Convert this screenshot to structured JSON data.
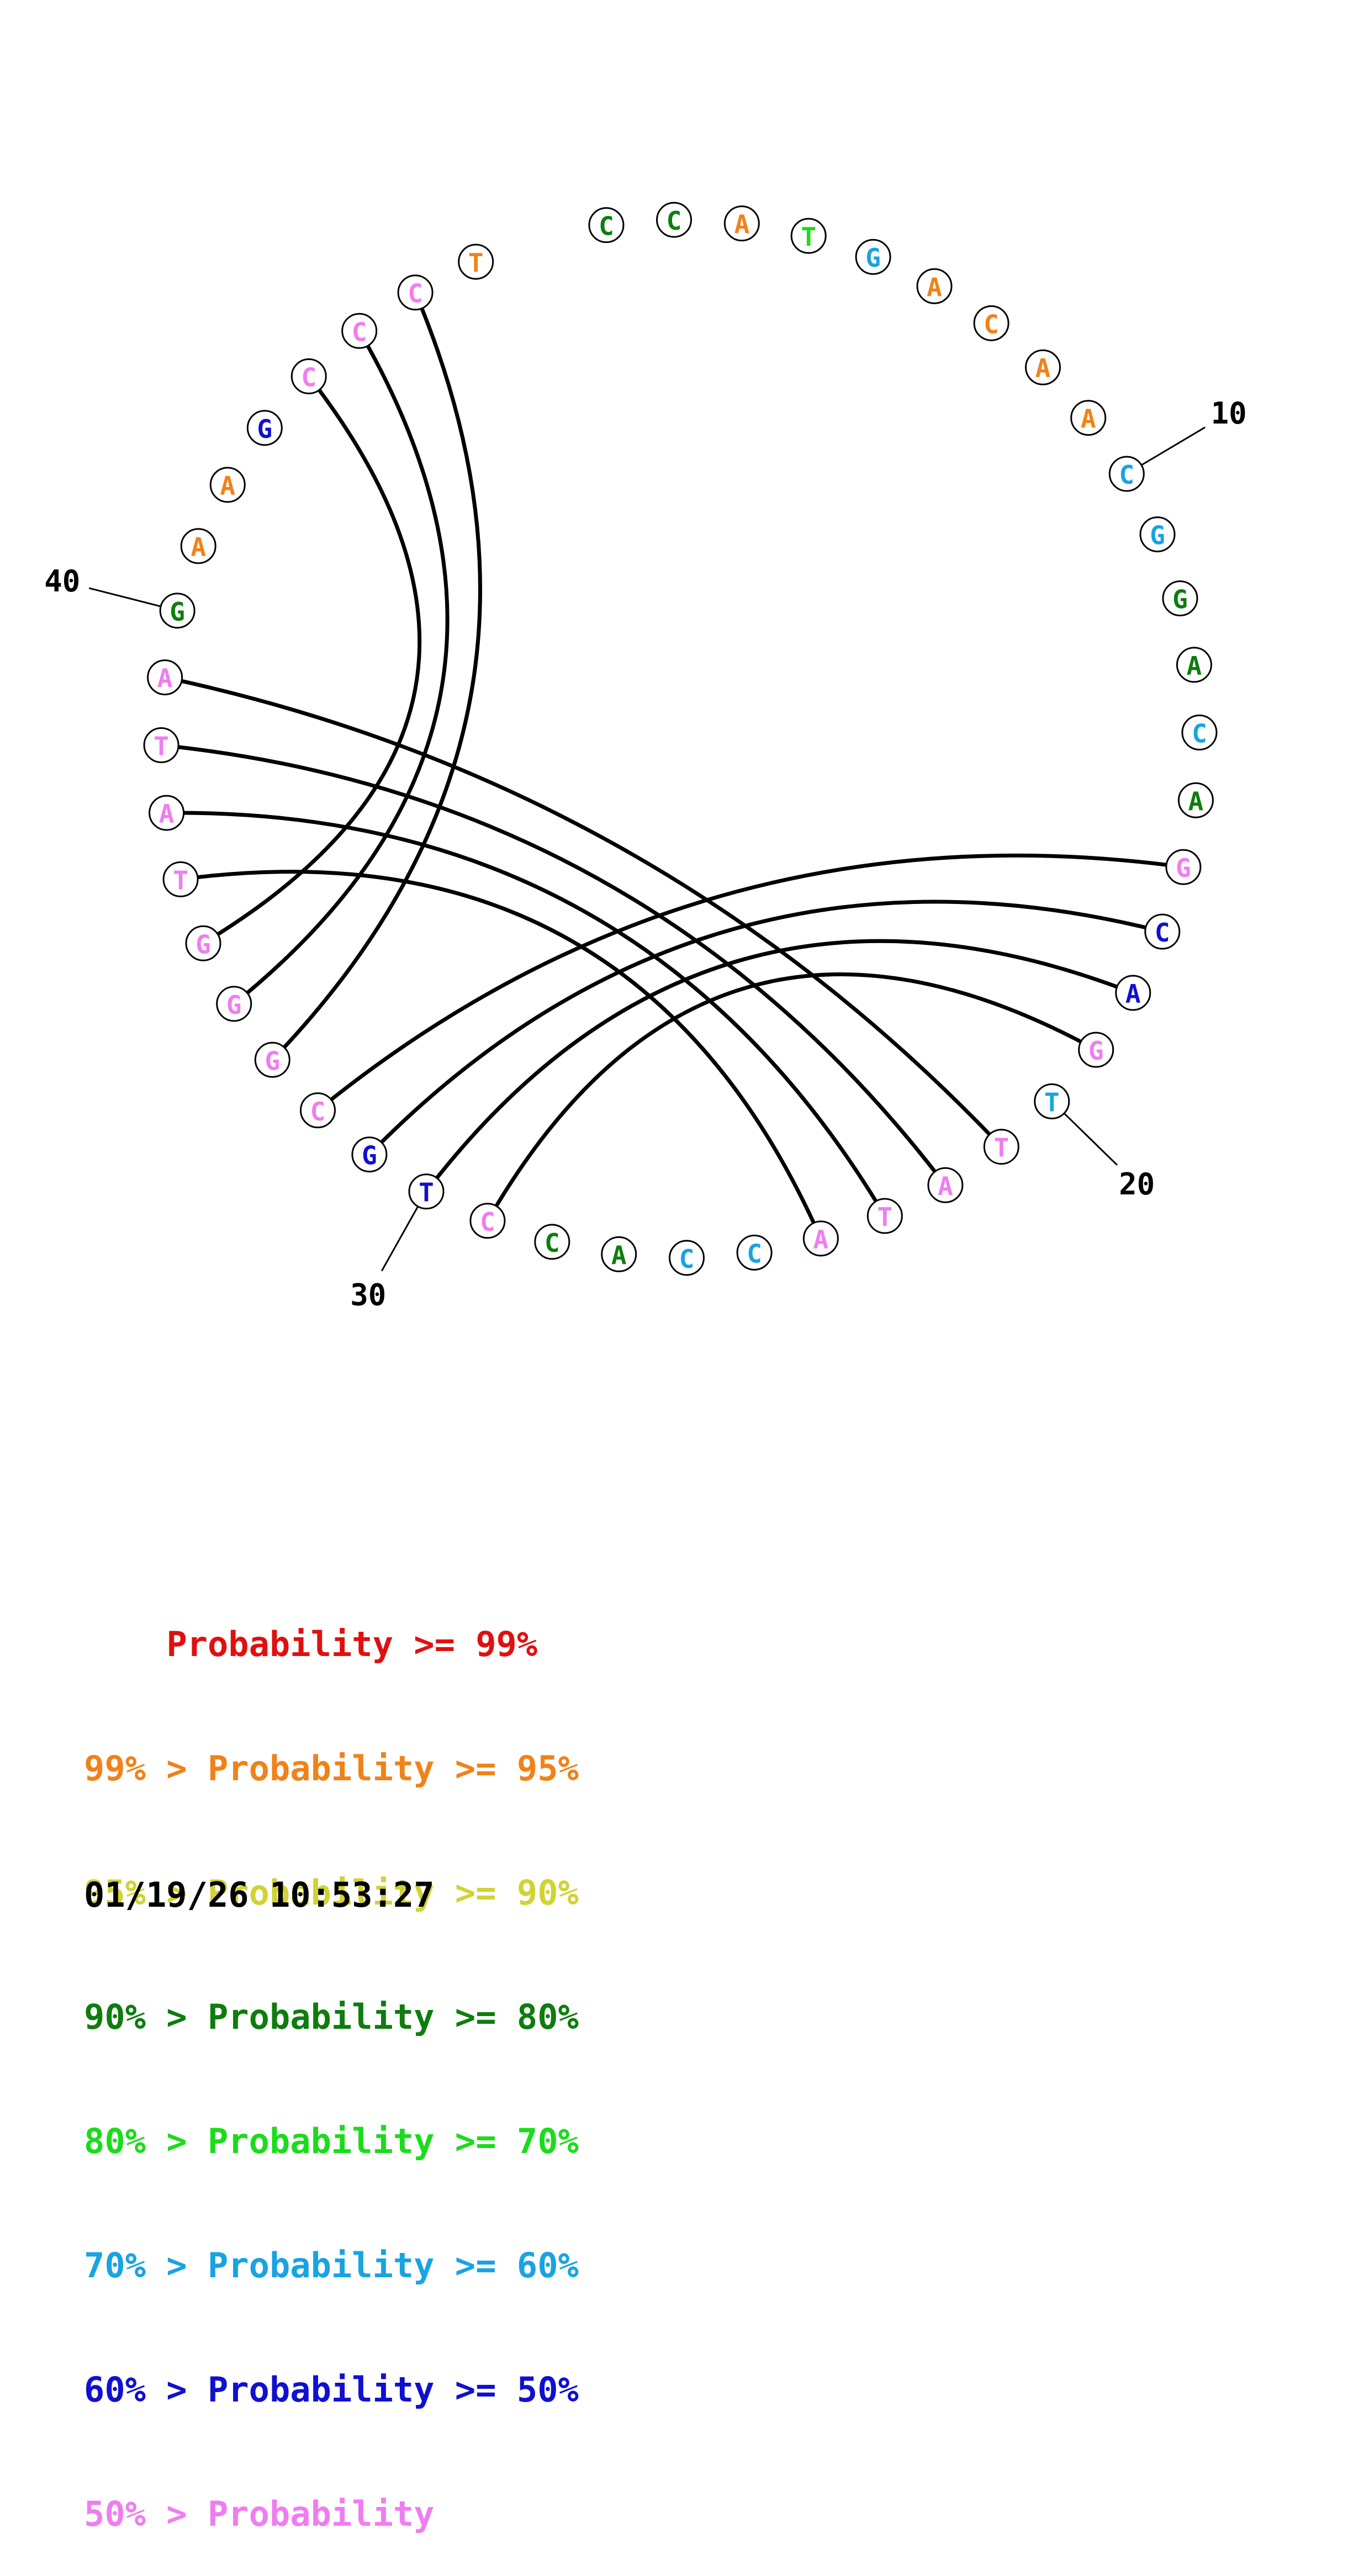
{
  "structure": {
    "nucleotides": [
      {
        "base": "C",
        "color": "#0e7d0e"
      },
      {
        "base": "C",
        "color": "#0e7d0e"
      },
      {
        "base": "A",
        "color": "#f08219"
      },
      {
        "base": "T",
        "color": "#1bdc1b"
      },
      {
        "base": "G",
        "color": "#18a3e3"
      },
      {
        "base": "A",
        "color": "#f08219"
      },
      {
        "base": "C",
        "color": "#f08219"
      },
      {
        "base": "A",
        "color": "#f08219"
      },
      {
        "base": "A",
        "color": "#f08219"
      },
      {
        "base": "C",
        "color": "#18a3e3"
      },
      {
        "base": "G",
        "color": "#18a3e3"
      },
      {
        "base": "G",
        "color": "#0e7d0e"
      },
      {
        "base": "A",
        "color": "#0e7d0e"
      },
      {
        "base": "C",
        "color": "#18a3e3"
      },
      {
        "base": "A",
        "color": "#0e7d0e"
      },
      {
        "base": "G",
        "color": "#f07df0"
      },
      {
        "base": "C",
        "color": "#1010d0"
      },
      {
        "base": "A",
        "color": "#1010d0"
      },
      {
        "base": "G",
        "color": "#f07df0"
      },
      {
        "base": "T",
        "color": "#18a3e3"
      },
      {
        "base": "T",
        "color": "#f07df0"
      },
      {
        "base": "A",
        "color": "#f07df0"
      },
      {
        "base": "T",
        "color": "#f07df0"
      },
      {
        "base": "A",
        "color": "#f07df0"
      },
      {
        "base": "C",
        "color": "#18a3e3"
      },
      {
        "base": "C",
        "color": "#18a3e3"
      },
      {
        "base": "A",
        "color": "#0e7d0e"
      },
      {
        "base": "C",
        "color": "#0e7d0e"
      },
      {
        "base": "C",
        "color": "#f07df0"
      },
      {
        "base": "T",
        "color": "#1010d0"
      },
      {
        "base": "G",
        "color": "#1010d0"
      },
      {
        "base": "C",
        "color": "#f07df0"
      },
      {
        "base": "G",
        "color": "#f07df0"
      },
      {
        "base": "G",
        "color": "#f07df0"
      },
      {
        "base": "G",
        "color": "#f07df0"
      },
      {
        "base": "T",
        "color": "#f07df0"
      },
      {
        "base": "A",
        "color": "#f07df0"
      },
      {
        "base": "T",
        "color": "#f07df0"
      },
      {
        "base": "A",
        "color": "#f07df0"
      },
      {
        "base": "G",
        "color": "#0e7d0e"
      },
      {
        "base": "A",
        "color": "#f08219"
      },
      {
        "base": "A",
        "color": "#f08219"
      },
      {
        "base": "G",
        "color": "#1010d0"
      },
      {
        "base": "C",
        "color": "#f07df0"
      },
      {
        "base": "C",
        "color": "#f07df0"
      },
      {
        "base": "C",
        "color": "#f07df0"
      },
      {
        "base": "T",
        "color": "#f08219"
      }
    ],
    "pairs": [
      [
        16,
        32
      ],
      [
        17,
        31
      ],
      [
        18,
        30
      ],
      [
        19,
        29
      ],
      [
        21,
        39
      ],
      [
        22,
        38
      ],
      [
        23,
        37
      ],
      [
        24,
        36
      ],
      [
        33,
        46
      ],
      [
        34,
        45
      ],
      [
        35,
        44
      ]
    ],
    "position_labels": [
      {
        "index": 10,
        "text": "10"
      },
      {
        "index": 20,
        "text": "20"
      },
      {
        "index": 30,
        "text": "30"
      },
      {
        "index": 40,
        "text": "40"
      }
    ]
  },
  "legend": {
    "rows": [
      {
        "prefix": "    ",
        "label": "Probability",
        "suffix": " >= 99%",
        "color": "#e01010"
      },
      {
        "prefix": "99% > ",
        "label": "Probability",
        "suffix": " >= 95%",
        "color": "#f08219"
      },
      {
        "prefix": "95% > ",
        "label": "Probability",
        "suffix": " >= 90%",
        "color": "#d2d232"
      },
      {
        "prefix": "90% > ",
        "label": "Probability",
        "suffix": " >= 80%",
        "color": "#0e7d0e"
      },
      {
        "prefix": "80% > ",
        "label": "Probability",
        "suffix": " >= 70%",
        "color": "#1bdc1b"
      },
      {
        "prefix": "70% > ",
        "label": "Probability",
        "suffix": " >= 60%",
        "color": "#18a3e3"
      },
      {
        "prefix": "60% > ",
        "label": "Probability",
        "suffix": " >= 50%",
        "color": "#1010d0"
      },
      {
        "prefix": "50% > ",
        "label": "Probability",
        "suffix": "",
        "color": "#f07df0"
      }
    ]
  },
  "timestamp": "01/19/26 10:53:27"
}
